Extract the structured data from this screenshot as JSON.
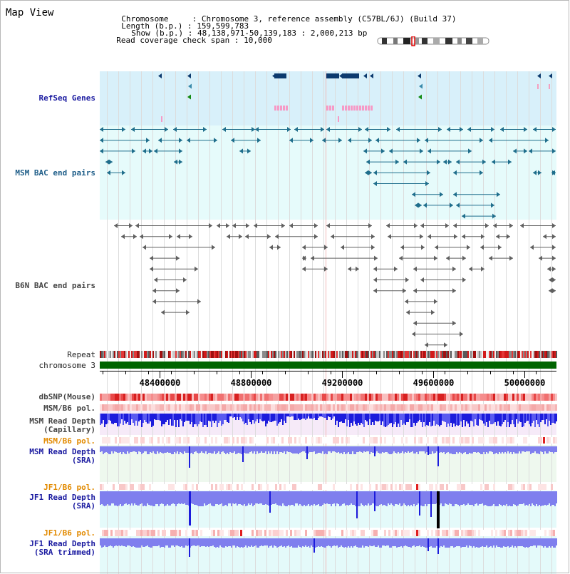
{
  "view": {
    "title": "Map View",
    "info": {
      "chromosome_key": "Chromosome",
      "chromosome_value": "Chromosome 3, reference assembly (C57BL/6J) (Build 37)",
      "length_key": "Length (b.p.)",
      "length_value": "159,599,783",
      "show_key": "Show (b.p.)",
      "show_value": "48,138,971-50,139,183 : 2,000,213 bp",
      "coverage_key": "Read coverage check span",
      "coverage_value": "10,000"
    }
  },
  "tracks": {
    "refseq": "RefSeq Genes",
    "msm_bac": "MSM BAC end pairs",
    "b6n_bac": "B6N BAC end pairs",
    "repeat": "Repeat",
    "chromosome": "chromosome 3",
    "dbsnp": "dbSNP(Mouse)",
    "msm_b6_pol_1": "MSM/B6 pol.",
    "msm_read_depth_cap_1": "MSM Read Depth",
    "msm_read_depth_cap_2": "(Capillary)",
    "msm_b6_pol_2": "MSM/B6 pol.",
    "msm_read_depth_sra_1": "MSM Read Depth",
    "msm_read_depth_sra_2": "(SRA)",
    "jf1_b6_pol_1": "JF1/B6 pol.",
    "jf1_read_depth_sra_1": "JF1 Read Depth",
    "jf1_read_depth_sra_2": "(SRA)",
    "jf1_b6_pol_2": "JF1/B6 pol.",
    "jf1_read_depth_trim_1": "JF1 Read Depth",
    "jf1_read_depth_trim_2": "(SRA trimmed)"
  },
  "axis": {
    "ticks": [
      "48400000",
      "48800000",
      "49200000",
      "49600000",
      "50000000"
    ],
    "range": [
      48138971,
      50139183
    ]
  },
  "colors": {
    "refseq_bg": "#d8f0fa",
    "bac_bg": "#e6fbfb",
    "msm_teal": "#1f6e8c",
    "b6n_gray": "#606060",
    "chrom_green": "#006400",
    "depth_blue": "#1c1cdc",
    "depth_light": "#7f7fee",
    "pol_pink": "#f4a0a0"
  }
}
